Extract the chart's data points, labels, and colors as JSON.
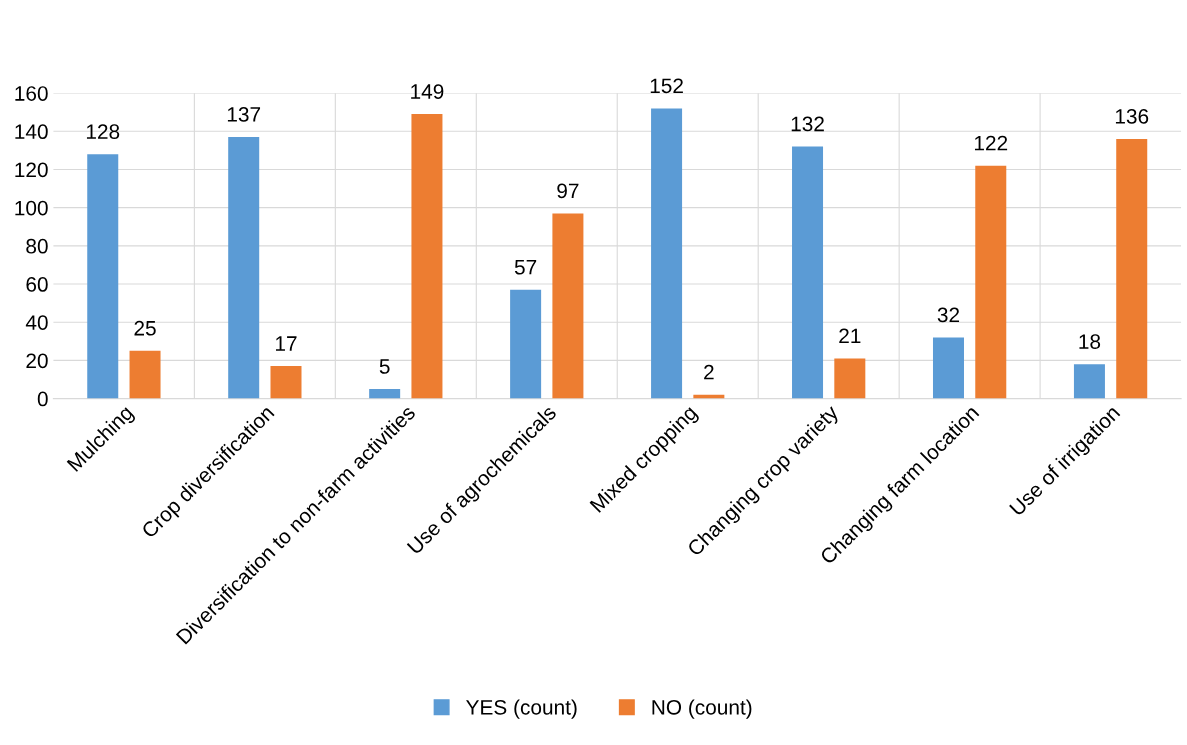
{
  "chart_data": {
    "type": "bar",
    "categories": [
      "Mulching",
      "Crop diversification",
      "Diversification to non-farm activities",
      "Use of agrochemicals",
      "Mixed cropping",
      "Changing crop variety",
      "Changing farm location",
      "Use of irrigation"
    ],
    "series": [
      {
        "name": "YES (count)",
        "color": "#5b9bd5",
        "values": [
          128,
          137,
          5,
          57,
          152,
          132,
          32,
          18
        ]
      },
      {
        "name": "NO (count)",
        "color": "#ed7d31",
        "values": [
          25,
          17,
          149,
          97,
          2,
          21,
          122,
          136
        ]
      }
    ],
    "ylim": [
      0,
      160
    ],
    "yticks": [
      0,
      20,
      40,
      60,
      80,
      100,
      120,
      140,
      160
    ],
    "grid": true,
    "legend": "bottom",
    "data_labels": true
  }
}
